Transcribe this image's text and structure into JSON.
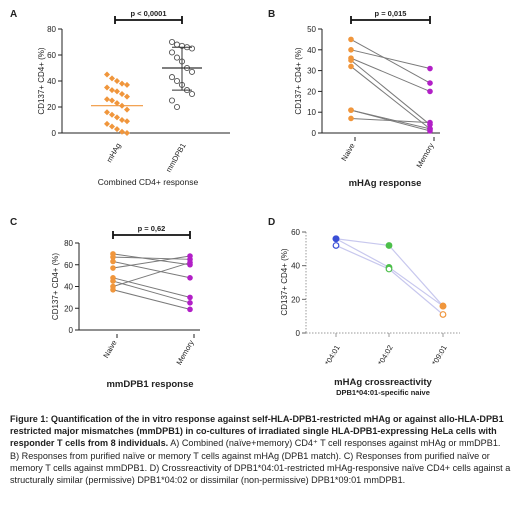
{
  "colors": {
    "orange": "#f0963c",
    "purple": "#b21fc7",
    "gray_line": "#7a7a7a",
    "blue": "#3a4fd6",
    "green": "#4cbf4a",
    "conn": "#c8c8ee"
  },
  "chart_data": [
    {
      "panel": "A",
      "type": "scatter",
      "ylabel": "CD137+ CD4+ (%)",
      "xlabel": "Combined CD4+ response",
      "ylim": [
        0,
        80
      ],
      "yticks": [
        0,
        20,
        40,
        60,
        80
      ],
      "categories": [
        "mHAg",
        "mmDPB1"
      ],
      "significance": "p < 0,0001",
      "series": [
        {
          "category": "mHAg",
          "marker": "filled-diamond",
          "mean": 21,
          "values": [
            45,
            42,
            40,
            38,
            37,
            35,
            33,
            32,
            30,
            28,
            26,
            25,
            23,
            21,
            18,
            16,
            14,
            12,
            10,
            9,
            7,
            5,
            3,
            1,
            0
          ]
        },
        {
          "category": "mmDPB1",
          "marker": "open-circle",
          "mean": 50,
          "error": [
            33,
            66
          ],
          "values": [
            70,
            68,
            67,
            66,
            65,
            62,
            58,
            55,
            50,
            47,
            43,
            40,
            37,
            33,
            30,
            25,
            20
          ]
        }
      ]
    },
    {
      "panel": "B",
      "type": "line",
      "ylabel": "CD137+ CD4+ (%)",
      "xlabel": "mHAg response",
      "ylim": [
        0,
        50
      ],
      "yticks": [
        0,
        10,
        20,
        30,
        40,
        50
      ],
      "categories": [
        "Naive",
        "Memory"
      ],
      "significance": "p = 0,015",
      "pairs": [
        [
          45,
          24
        ],
        [
          40,
          31
        ],
        [
          36,
          20
        ],
        [
          35,
          4
        ],
        [
          32,
          2
        ],
        [
          11,
          1
        ],
        [
          11,
          2
        ],
        [
          7,
          5
        ]
      ]
    },
    {
      "panel": "C",
      "type": "line",
      "ylabel": "CD137+ CD4+ (%)",
      "xlabel": "mmDPB1 response",
      "ylim": [
        0,
        80
      ],
      "yticks": [
        0,
        20,
        40,
        60,
        80
      ],
      "categories": [
        "Naive",
        "Memory"
      ],
      "significance": "p = 0,62",
      "pairs": [
        [
          70,
          60
        ],
        [
          67,
          65
        ],
        [
          63,
          48
        ],
        [
          57,
          68
        ],
        [
          48,
          30
        ],
        [
          45,
          25
        ],
        [
          40,
          62
        ],
        [
          37,
          19
        ]
      ]
    },
    {
      "panel": "D",
      "type": "line",
      "ylabel": "CD137+ CD4+ (%)",
      "xlabel": "mHAg crossreactivity",
      "subtitle": "DPB1*04:01-specific naive",
      "ylim": [
        0,
        60
      ],
      "yticks": [
        0,
        20,
        40,
        60
      ],
      "categories": [
        "*04:01",
        "*04:02",
        "*09:01"
      ],
      "series": [
        {
          "values": [
            56,
            39,
            16
          ]
        },
        {
          "values": [
            52,
            38,
            11
          ]
        },
        {
          "values": [
            56,
            52,
            16
          ]
        }
      ]
    }
  ],
  "caption": {
    "bold_text": "Figure 1: Quantification of the in vitro response against self-HLA-DPB1-restricted mHAg or against allo-HLA-DPB1 restricted major mismatches (mmDPB1) in co-cultures of irradiated single HLA-DPB1-expressing HeLa cells with responder T cells from 8 individuals.",
    "text": " A) Combined (naïve+memory) CD4⁺ T cell responses against mHAg or mmDPB1. B) Responses from purified naïve or memory T cells against mHAg (DPB1 match). C) Responses from purified naïve or memory T cells against mmDPB1. D) Crossreactivity of DPB1*04:01-restricted mHAg-responsive naïve CD4+ cells against a structurally similar (permissive) DPB1*04:02 or dissimilar (non-permissive) DPB1*09:01 mmDPB1."
  }
}
